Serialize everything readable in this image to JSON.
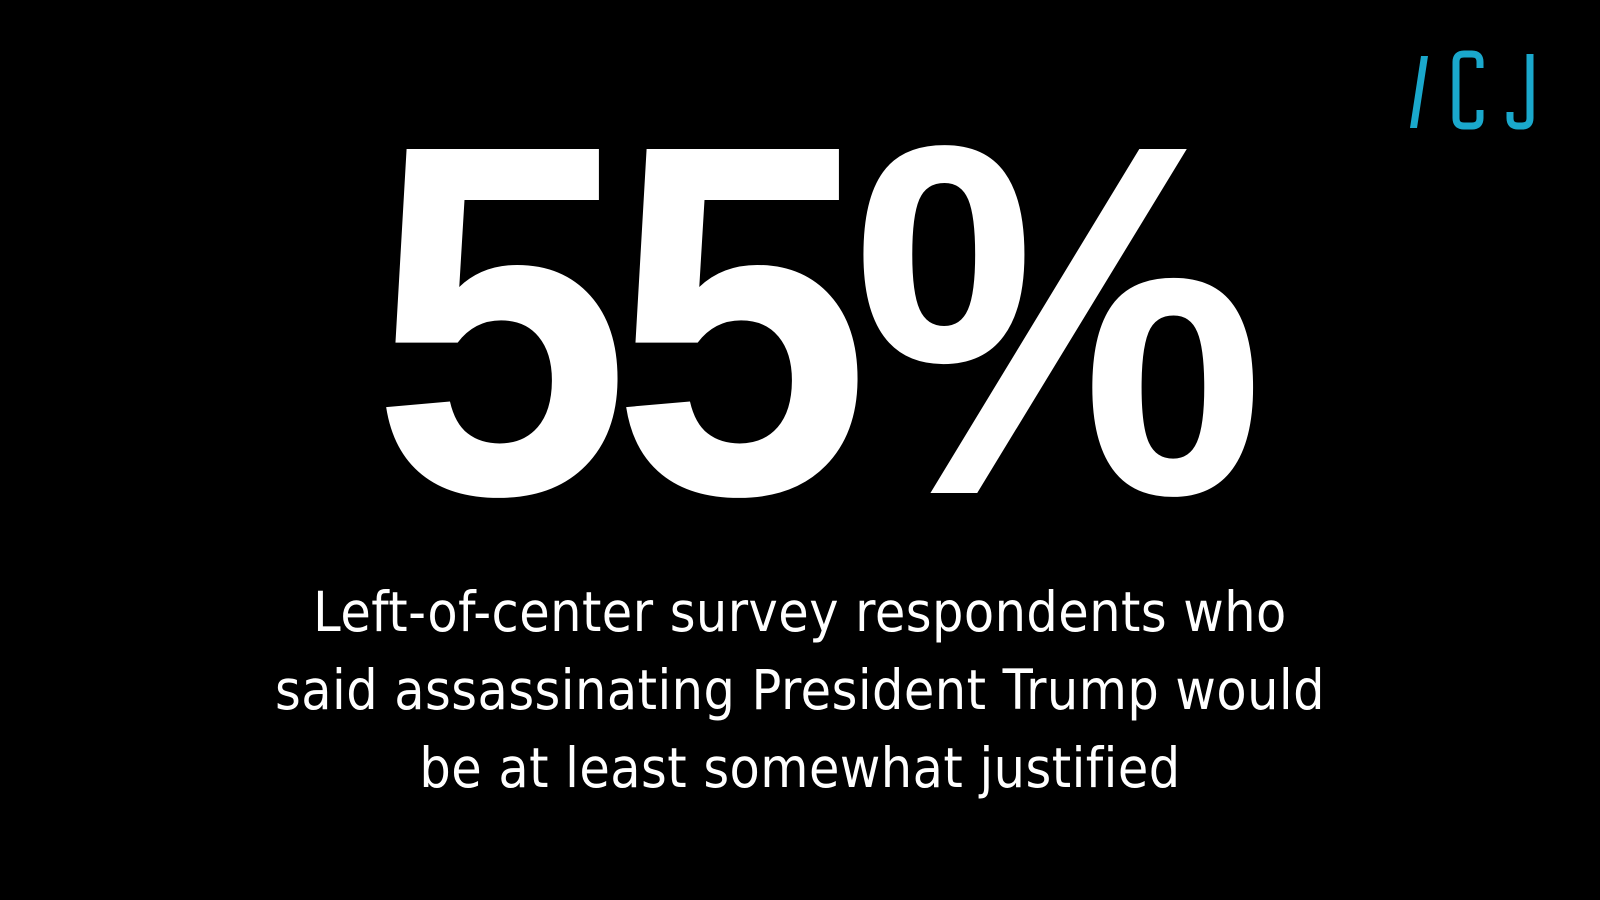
{
  "logo": {
    "text": "/ CJ",
    "color": "#1aa8cc",
    "icon": "cj-logo-icon"
  },
  "stat": {
    "value": "55%"
  },
  "caption": {
    "text": "Left-of-center survey respondents who said assassinating President Trump would be at least somewhat justified"
  },
  "colors": {
    "background": "#000000",
    "text": "#ffffff",
    "accent": "#1aa8cc"
  }
}
